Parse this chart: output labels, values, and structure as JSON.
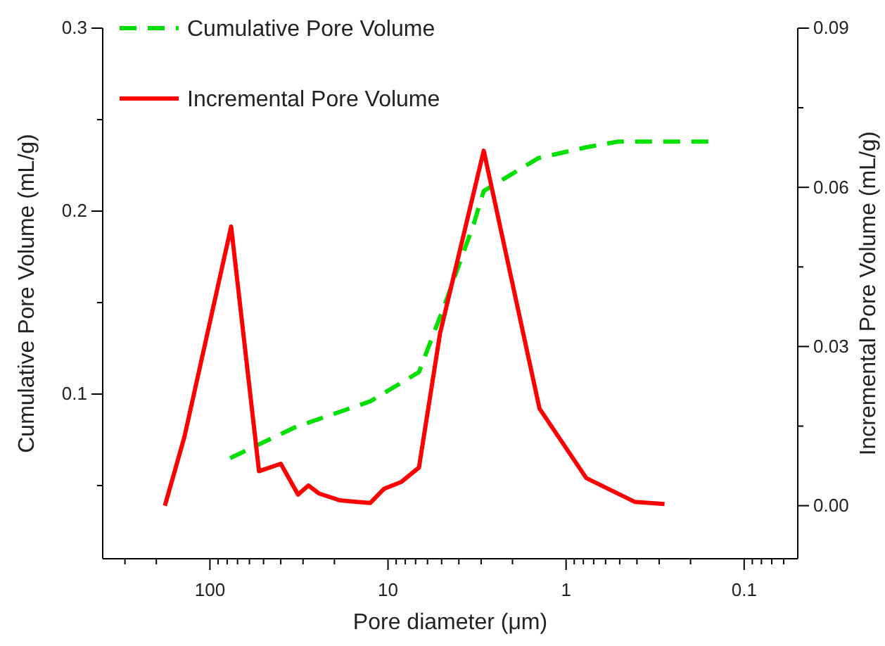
{
  "chart_data": {
    "type": "line",
    "xlabel": "Pore diameter (μm)",
    "ylabel": "Cumulative Pore Volume (mL/g)",
    "y2label": "Incremental Pore Volume (mL/g)",
    "log": "x",
    "legend": "top left",
    "grid": false,
    "xlim": [
      400,
      0.05
    ],
    "xticks": [
      {
        "value": 300,
        "label": null
      },
      {
        "value": 200,
        "label": null
      },
      100,
      {
        "value": 90,
        "label": null
      },
      {
        "value": 80,
        "label": null
      },
      {
        "value": 70,
        "label": null
      },
      {
        "value": 60,
        "label": null
      },
      {
        "value": 50,
        "label": null
      },
      {
        "value": 40,
        "label": null
      },
      {
        "value": 30,
        "label": null
      },
      {
        "value": 20,
        "label": null
      },
      10,
      {
        "value": 9,
        "label": null
      },
      {
        "value": 8,
        "label": null
      },
      {
        "value": 7,
        "label": null
      },
      {
        "value": 6,
        "label": null
      },
      {
        "value": 5,
        "label": null
      },
      {
        "value": 4,
        "label": null
      },
      {
        "value": 3,
        "label": null
      },
      {
        "value": 2,
        "label": null
      },
      1,
      {
        "value": 0.9,
        "label": null
      },
      {
        "value": 0.8,
        "label": null
      },
      {
        "value": 0.7,
        "label": null
      },
      {
        "value": 0.6,
        "label": null
      },
      {
        "value": 0.5,
        "label": null
      },
      {
        "value": 0.4,
        "label": null
      },
      {
        "value": 0.3,
        "label": null
      },
      {
        "value": 0.2,
        "label": null
      },
      0.1,
      {
        "value": 0.09,
        "label": null
      },
      {
        "value": 0.08,
        "label": null
      },
      {
        "value": 0.07,
        "label": null
      },
      {
        "value": 0.06,
        "label": null
      }
    ],
    "ylim": [
      0.01,
      0.3
    ],
    "yticks": [
      {
        "value": 0.05,
        "label": null
      },
      0.1,
      {
        "value": 0.15,
        "label": null
      },
      0.2,
      {
        "value": 0.25,
        "label": null
      },
      0.3
    ],
    "y2lim": [
      -0.01,
      0.09
    ],
    "y2ticks": [
      {
        "value": 0.0,
        "label": "0.00"
      },
      {
        "value": 0.015,
        "label": null
      },
      {
        "value": 0.03,
        "label": "0.03"
      },
      {
        "value": 0.045,
        "label": null
      },
      {
        "value": 0.06,
        "label": "0.06"
      },
      {
        "value": 0.075,
        "label": null
      },
      {
        "value": 0.09,
        "label": "0.09"
      }
    ],
    "series": [
      {
        "name": "Cumulative Pore Volume",
        "color": "#00e000",
        "line_style": "dashed",
        "x": [
          77,
          33,
          12.6,
          6.7,
          4.8,
          3.3,
          2.9,
          1.43,
          0.76,
          0.51,
          0.152
        ],
        "values": [
          0.065,
          0.082,
          0.096,
          0.112,
          0.149,
          0.193,
          0.211,
          0.229,
          0.235,
          0.238,
          0.238
        ]
      },
      {
        "name": "Incremental Pore Volume",
        "color": "#ff0000",
        "line_style": "solid",
        "axis": "y2",
        "x": [
          179,
          139,
          76,
          53,
          40,
          32,
          28,
          24.4,
          18.6,
          12.6,
          10.5,
          8.4,
          6.7,
          5.1,
          2.9,
          1.41,
          0.77,
          0.41,
          0.28
        ],
        "values": [
          0.0,
          0.013,
          0.0526,
          0.0065,
          0.0079,
          0.0021,
          0.0038,
          0.0023,
          0.001,
          0.0005,
          0.0032,
          0.0045,
          0.0072,
          0.0325,
          0.0669,
          0.0183,
          0.0052,
          0.0007,
          0.0003
        ]
      }
    ]
  }
}
